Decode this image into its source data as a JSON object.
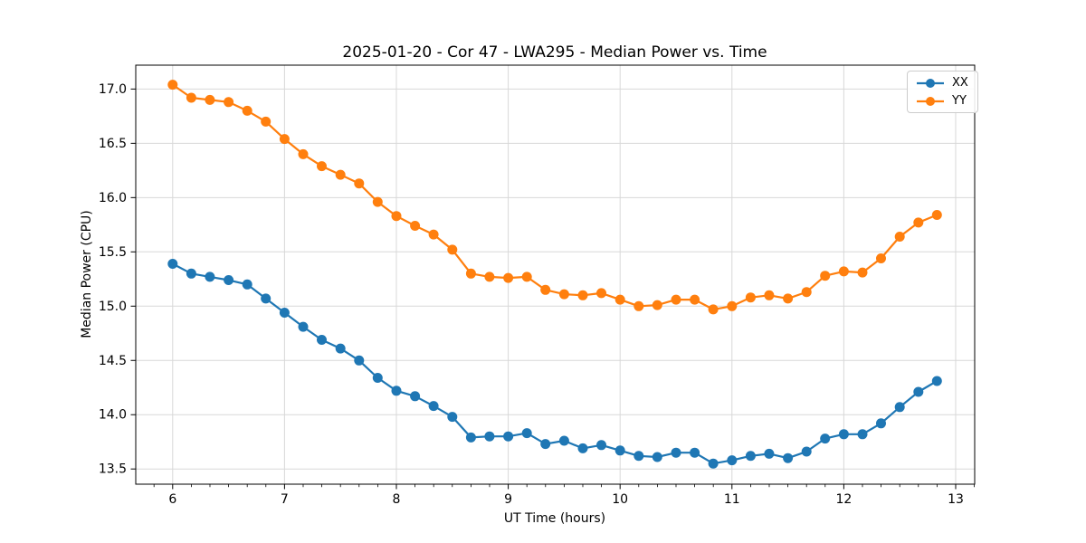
{
  "figure": {
    "title": "2025-01-20 - Cor 47 - LWA295 - Median Power vs. Time"
  },
  "chart_data": {
    "type": "line",
    "title": "2025-01-20 - Cor 47 - LWA295 - Median Power vs. Time",
    "xlabel": "UT Time (hours)",
    "ylabel": "Median Power (CPU)",
    "grid": true,
    "grid_color": "#d8d8d8",
    "legend_position": "upper right",
    "marker": "o",
    "xlim": [
      5.67,
      13.17
    ],
    "ylim": [
      13.36,
      17.22
    ],
    "xticks": [
      6,
      7,
      8,
      9,
      10,
      11,
      12,
      13
    ],
    "xtick_labels": [
      "6",
      "7",
      "8",
      "9",
      "10",
      "11",
      "12",
      "13"
    ],
    "x_minor_step": 0.16667,
    "yticks": [
      13.5,
      14.0,
      14.5,
      15.0,
      15.5,
      16.0,
      16.5,
      17.0
    ],
    "ytick_labels": [
      "13.5",
      "14.0",
      "14.5",
      "15.0",
      "15.5",
      "16.0",
      "16.5",
      "17.0"
    ],
    "x": [
      6.0,
      6.167,
      6.333,
      6.5,
      6.667,
      6.833,
      7.0,
      7.167,
      7.333,
      7.5,
      7.667,
      7.833,
      8.0,
      8.167,
      8.333,
      8.5,
      8.667,
      8.833,
      9.0,
      9.167,
      9.333,
      9.5,
      9.667,
      9.833,
      10.0,
      10.167,
      10.333,
      10.5,
      10.667,
      10.833,
      11.0,
      11.167,
      11.333,
      11.5,
      11.667,
      11.833,
      12.0,
      12.167,
      12.333,
      12.5,
      12.667,
      12.833
    ],
    "series": [
      {
        "name": "XX",
        "color": "#1f77b4",
        "values": [
          15.39,
          15.3,
          15.27,
          15.24,
          15.2,
          15.07,
          14.94,
          14.81,
          14.69,
          14.61,
          14.5,
          14.34,
          14.22,
          14.17,
          14.08,
          13.98,
          13.79,
          13.8,
          13.8,
          13.83,
          13.73,
          13.76,
          13.69,
          13.72,
          13.67,
          13.62,
          13.61,
          13.65,
          13.65,
          13.55,
          13.58,
          13.62,
          13.64,
          13.6,
          13.66,
          13.78,
          13.82,
          13.82,
          13.92,
          14.07,
          14.21,
          14.31
        ]
      },
      {
        "name": "YY",
        "color": "#ff7f0e",
        "values": [
          17.04,
          16.92,
          16.9,
          16.88,
          16.8,
          16.7,
          16.54,
          16.4,
          16.29,
          16.21,
          16.13,
          15.96,
          15.83,
          15.74,
          15.66,
          15.52,
          15.3,
          15.27,
          15.26,
          15.27,
          15.15,
          15.11,
          15.1,
          15.12,
          15.06,
          15.0,
          15.01,
          15.06,
          15.06,
          14.97,
          15.0,
          15.08,
          15.1,
          15.07,
          15.13,
          15.28,
          15.32,
          15.31,
          15.44,
          15.64,
          15.77,
          15.84
        ]
      }
    ]
  }
}
